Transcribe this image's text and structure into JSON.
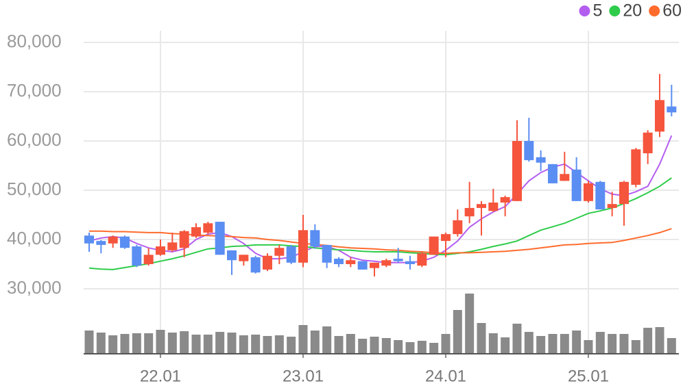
{
  "chart_data": {
    "type": "candlestick",
    "categories": [
      null,
      null,
      null,
      null,
      null,
      null,
      "22.01",
      null,
      null,
      null,
      null,
      null,
      null,
      null,
      null,
      null,
      null,
      null,
      "23.01",
      null,
      null,
      null,
      null,
      null,
      null,
      null,
      null,
      null,
      null,
      null,
      "24.01",
      null,
      null,
      null,
      null,
      null,
      null,
      null,
      null,
      null,
      null,
      null,
      "25.01",
      null,
      null,
      null,
      null,
      null,
      null,
      null
    ],
    "open": [
      40800,
      39700,
      39200,
      40600,
      38600,
      35000,
      36900,
      37800,
      38300,
      40600,
      41400,
      43600,
      37800,
      35600,
      36400,
      33900,
      36700,
      38600,
      35300,
      41900,
      38900,
      36100,
      35000,
      35600,
      34200,
      34700,
      36100,
      35600,
      34700,
      36900,
      39700,
      41100,
      44700,
      46400,
      45800,
      47500,
      47800,
      60000,
      56700,
      55300,
      51900,
      54200,
      47800,
      51700,
      46400,
      47200,
      51100,
      57500,
      61900,
      67000
    ],
    "high": [
      41400,
      39900,
      40800,
      40800,
      38900,
      38300,
      40000,
      41400,
      41900,
      43300,
      43600,
      43600,
      37800,
      36900,
      36700,
      37200,
      38900,
      38900,
      45000,
      43100,
      38900,
      36400,
      36400,
      35600,
      35300,
      36100,
      38300,
      36700,
      37500,
      40600,
      41400,
      46100,
      51700,
      47800,
      50300,
      48900,
      64200,
      64700,
      58100,
      55300,
      57800,
      56700,
      51900,
      51900,
      49700,
      51900,
      58600,
      62200,
      73600,
      71400
    ],
    "low": [
      37500,
      37200,
      38300,
      38100,
      34400,
      34700,
      36700,
      37500,
      36400,
      40300,
      41100,
      36900,
      32800,
      34700,
      33100,
      33600,
      35000,
      35000,
      34400,
      38100,
      34200,
      34400,
      34400,
      33900,
      32500,
      34400,
      35300,
      33900,
      34400,
      36900,
      36400,
      40600,
      43300,
      40800,
      45600,
      44700,
      47800,
      55800,
      53900,
      51400,
      51900,
      47800,
      47500,
      46100,
      44700,
      42800,
      50600,
      55300,
      60800,
      65000
    ],
    "close": [
      39200,
      38900,
      40600,
      38300,
      34700,
      36900,
      38600,
      39400,
      41700,
      42500,
      43300,
      36900,
      35800,
      36900,
      33300,
      36700,
      38300,
      35300,
      41900,
      38600,
      35300,
      35000,
      35800,
      33900,
      35300,
      35800,
      35600,
      35000,
      37200,
      40600,
      41100,
      43900,
      46400,
      47200,
      47500,
      48600,
      60000,
      56100,
      55600,
      51400,
      53300,
      47800,
      51400,
      46100,
      47200,
      51700,
      58300,
      61700,
      68300,
      65800
    ],
    "up_color": "#f5553d",
    "down_color": "#5b8ef2",
    "series": [
      {
        "name": "5",
        "color": "#b45ef0",
        "values": [
          39700,
          40300,
          40600,
          40300,
          39200,
          38300,
          37800,
          37500,
          38100,
          40000,
          41100,
          41400,
          40600,
          39200,
          37200,
          36100,
          36100,
          36400,
          37500,
          38600,
          38600,
          37800,
          36400,
          35800,
          35600,
          35300,
          35300,
          35300,
          35600,
          36400,
          37800,
          39700,
          42500,
          44200,
          45600,
          46700,
          49200,
          51900,
          53600,
          54700,
          55300,
          53600,
          51900,
          50300,
          49200,
          48900,
          49700,
          50800,
          55300,
          61100
        ]
      },
      {
        "name": "20",
        "color": "#2ecc4a",
        "values": [
          34200,
          34000,
          33900,
          34300,
          34700,
          35100,
          35600,
          36100,
          36700,
          37400,
          38100,
          38300,
          38600,
          38700,
          38900,
          38900,
          38900,
          38700,
          38600,
          38300,
          38100,
          37900,
          37800,
          37600,
          37500,
          37500,
          37500,
          37300,
          37200,
          37000,
          36900,
          37200,
          37500,
          38000,
          38600,
          39100,
          39700,
          40800,
          41900,
          42600,
          43300,
          44300,
          45300,
          45800,
          46400,
          47300,
          48300,
          49500,
          50800,
          52500
        ]
      },
      {
        "name": "60",
        "color": "#ff6b2c",
        "values": [
          41700,
          41700,
          41600,
          41600,
          41500,
          41400,
          41400,
          41200,
          41100,
          40900,
          40800,
          40700,
          40600,
          40400,
          40300,
          40000,
          39800,
          39500,
          39200,
          39000,
          38800,
          38500,
          38300,
          38200,
          38100,
          37900,
          37800,
          37600,
          37500,
          37300,
          37200,
          37300,
          37300,
          37400,
          37500,
          37600,
          37800,
          38000,
          38300,
          38600,
          38900,
          39000,
          39200,
          39300,
          39400,
          39800,
          40300,
          40800,
          41400,
          42200
        ]
      }
    ],
    "volume": {
      "color": "#8a8a8a",
      "ylim": [
        0,
        100
      ],
      "values": [
        34,
        31,
        27,
        29,
        30,
        30,
        35,
        31,
        33,
        28,
        28,
        32,
        31,
        27,
        28,
        26,
        27,
        25,
        42,
        34,
        40,
        26,
        29,
        22,
        25,
        23,
        20,
        17,
        19,
        16,
        29,
        64,
        88,
        45,
        30,
        24,
        44,
        32,
        26,
        29,
        29,
        34,
        20,
        32,
        29,
        29,
        20,
        38,
        39,
        23
      ]
    },
    "ylim": [
      26000,
      84000
    ],
    "yticks": [
      {
        "value": 30000,
        "label": "30,000"
      },
      {
        "value": 40000,
        "label": "40,000"
      },
      {
        "value": 50000,
        "label": "50,000"
      },
      {
        "value": 60000,
        "label": "60,000"
      },
      {
        "value": 70000,
        "label": "70,000"
      },
      {
        "value": 80000,
        "label": "80,000"
      }
    ],
    "grid": true,
    "legend": "top-right"
  }
}
